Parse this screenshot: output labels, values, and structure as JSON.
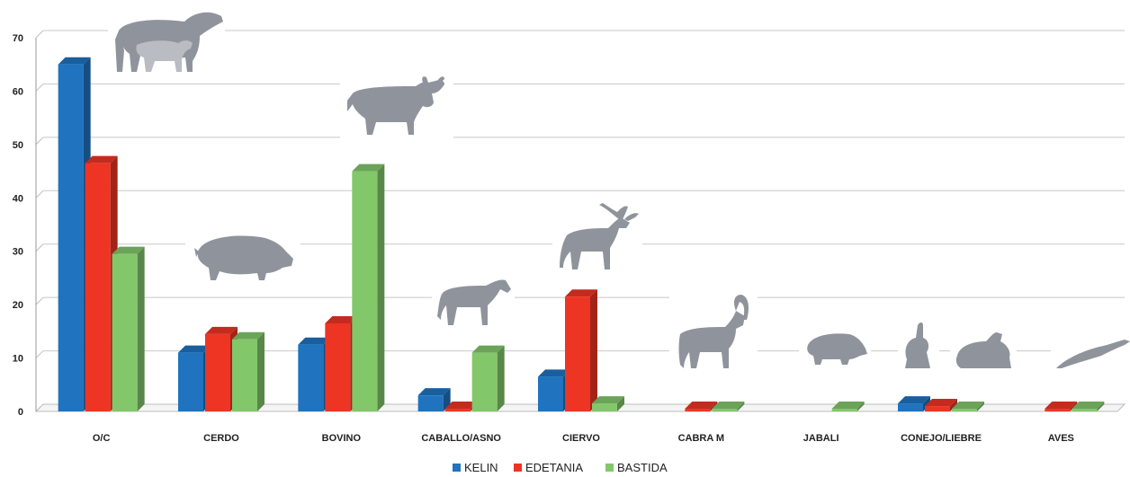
{
  "chart_data": {
    "type": "bar",
    "categories": [
      "O/C",
      "CERDO",
      "BOVINO",
      "CABALLO/ASNO",
      "CIERVO",
      "CABRA M",
      "JABALI",
      "CONEJO/LIEBRE",
      "AVES"
    ],
    "series": [
      {
        "name": "KELIN",
        "color": "#1f73bf",
        "values": [
          65,
          11,
          12.5,
          3,
          6.5,
          0,
          0,
          1.5,
          0
        ]
      },
      {
        "name": "EDETANIA",
        "color": "#ee3524",
        "values": [
          46.5,
          14.5,
          16.5,
          0.5,
          21.5,
          0.5,
          0,
          1,
          0.5
        ]
      },
      {
        "name": "BASTIDA",
        "color": "#83c76b",
        "values": [
          29.5,
          13.5,
          45,
          11,
          1.5,
          0.5,
          0.5,
          0.5,
          0.5
        ]
      }
    ],
    "yticks": [
      "0",
      "10",
      "20",
      "30",
      "40",
      "50",
      "60",
      "70"
    ],
    "ylim": [
      0,
      70
    ],
    "grid": true,
    "legend": "bottom-center",
    "style": "3d-bar",
    "icons": [
      "sheep-goat-icon",
      "pig-icon",
      "bull-icon",
      "horse-icon",
      "deer-icon",
      "ibex-icon",
      "boar-icon",
      "hare-icon",
      "rabbit-icon",
      "bird-icon"
    ]
  }
}
